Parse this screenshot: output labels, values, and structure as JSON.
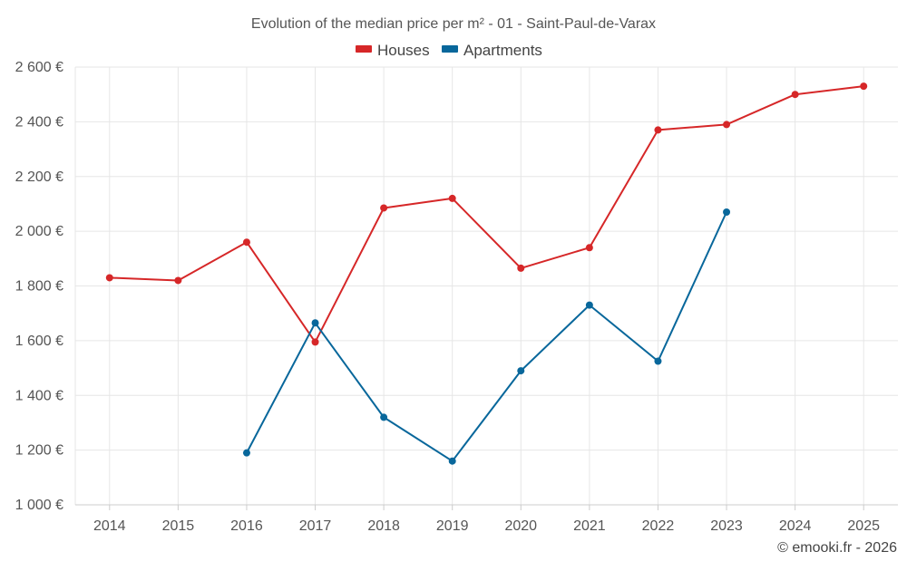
{
  "chart_data": {
    "type": "line",
    "title": "Evolution of the median price per m² - 01 - Saint-Paul-de-Varax",
    "categories": [
      "2014",
      "2015",
      "2016",
      "2017",
      "2018",
      "2019",
      "2020",
      "2021",
      "2022",
      "2023",
      "2024",
      "2025"
    ],
    "y_ticks": [
      "1 000 €",
      "1 200 €",
      "1 400 €",
      "1 600 €",
      "1 800 €",
      "2 000 €",
      "2 200 €",
      "2 400 €",
      "2 600 €"
    ],
    "ylim": [
      1000,
      2600
    ],
    "grid": true,
    "legend_position": "top-center",
    "series": [
      {
        "name": "Houses",
        "color": "#d62728",
        "values": [
          1830,
          1820,
          1960,
          1595,
          2085,
          2120,
          1865,
          1940,
          2370,
          2390,
          2500,
          2530
        ]
      },
      {
        "name": "Apartments",
        "color": "#08679b",
        "values": [
          null,
          null,
          1190,
          1665,
          1320,
          1160,
          1490,
          1730,
          1525,
          2070,
          null,
          null
        ]
      }
    ]
  },
  "credit": "© emooki.fr - 2026"
}
